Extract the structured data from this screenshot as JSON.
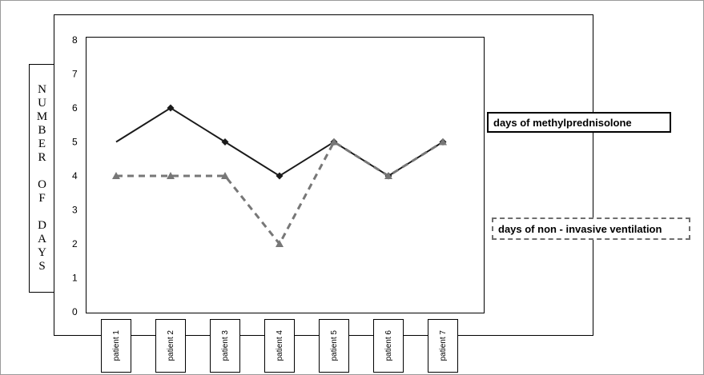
{
  "chart_data": {
    "type": "line",
    "categories": [
      "patient 1",
      "patient 2",
      "patient 3",
      "patient 4",
      "patient 5",
      "patient 6",
      "patient 7"
    ],
    "series": [
      {
        "name": "days of methylprednisolone",
        "values": [
          5,
          6,
          5,
          4,
          5,
          4,
          5
        ],
        "color": "#1a1a1a",
        "line_style": "solid",
        "marker": "diamond"
      },
      {
        "name": "days of non-invasive ventilation",
        "values": [
          4,
          4,
          4,
          2,
          5,
          4,
          5
        ],
        "color": "#777777",
        "line_style": "dashed",
        "marker": "triangle"
      }
    ],
    "title": "",
    "xlabel": "",
    "ylabel": "NUMBER OF DAYS",
    "ylim": [
      0,
      8
    ],
    "yticks": [
      0,
      1,
      2,
      3,
      4,
      5,
      6,
      7,
      8
    ],
    "grid": false,
    "legend_position": "right"
  },
  "legend": {
    "solid_label": "days of methylprednisolone",
    "dashed_label": "days of non - invasive ventilation"
  }
}
